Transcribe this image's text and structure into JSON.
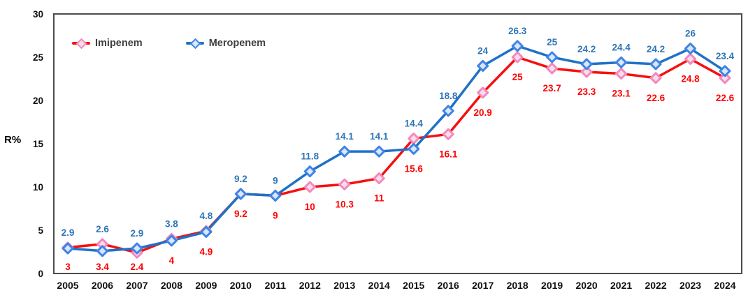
{
  "figure": {
    "ylabel": "R%"
  },
  "legend": {
    "items": [
      {
        "label": "Imipenem"
      },
      {
        "label": "Meropenem"
      }
    ]
  },
  "colors": {
    "imipenem_line": "#f5100f",
    "imipenem_label": "#ff0000",
    "imipenem_marker_stroke": "#f389bb",
    "imipenem_marker_fill": "#fbdcec",
    "meropenem_line": "#1e72c7",
    "meropenem_label": "#2e75b6",
    "meropenem_marker_stroke": "#3f83e6",
    "meropenem_marker_fill": "#d8e7fa",
    "axis_border": "#4d4d4d",
    "tick_text": "#111111"
  },
  "chart_data": {
    "type": "line",
    "title": "",
    "xlabel": "",
    "ylabel": "R%",
    "ylim": [
      0,
      30
    ],
    "yticks": [
      0,
      5,
      10,
      15,
      20,
      25,
      30
    ],
    "grid": false,
    "legend_position": "top-left",
    "categories": [
      "2005",
      "2006",
      "2007",
      "2008",
      "2009",
      "2010",
      "2011",
      "2012",
      "2013",
      "2014",
      "2015",
      "2016",
      "2017",
      "2018",
      "2019",
      "2020",
      "2021",
      "2022",
      "2023",
      "2024"
    ],
    "series": [
      {
        "name": "Imipenem",
        "values": [
          3,
          3.4,
          2.4,
          4,
          4.9,
          9.2,
          9,
          10,
          10.3,
          11,
          15.6,
          16.1,
          20.9,
          25,
          23.7,
          23.3,
          23.1,
          22.6,
          24.8,
          22.6
        ],
        "labels": [
          "3",
          "3.4",
          "2.4",
          "4",
          "4.9",
          "9.2",
          "9",
          "10",
          "10.3",
          "11",
          "15.6",
          "16.1",
          "20.9",
          "25",
          "23.7",
          "23.3",
          "23.1",
          "22.6",
          "24.8",
          "22.6"
        ],
        "label_placement": "below"
      },
      {
        "name": "Meropenem",
        "values": [
          2.9,
          2.6,
          2.9,
          3.8,
          4.8,
          9.2,
          9,
          11.8,
          14.1,
          14.1,
          14.4,
          18.8,
          24,
          26.3,
          25,
          24.2,
          24.4,
          24.2,
          26,
          23.4
        ],
        "labels": [
          "2.9",
          "2.6",
          "2.9",
          "3.8",
          "4.8",
          "9.2",
          "9",
          "11.8",
          "14.1",
          "14.1",
          "14.4",
          "18.8",
          "24",
          "26.3",
          "25",
          "24.2",
          "24.4",
          "24.2",
          "26",
          "23.4"
        ],
        "label_placement": "above"
      }
    ]
  }
}
